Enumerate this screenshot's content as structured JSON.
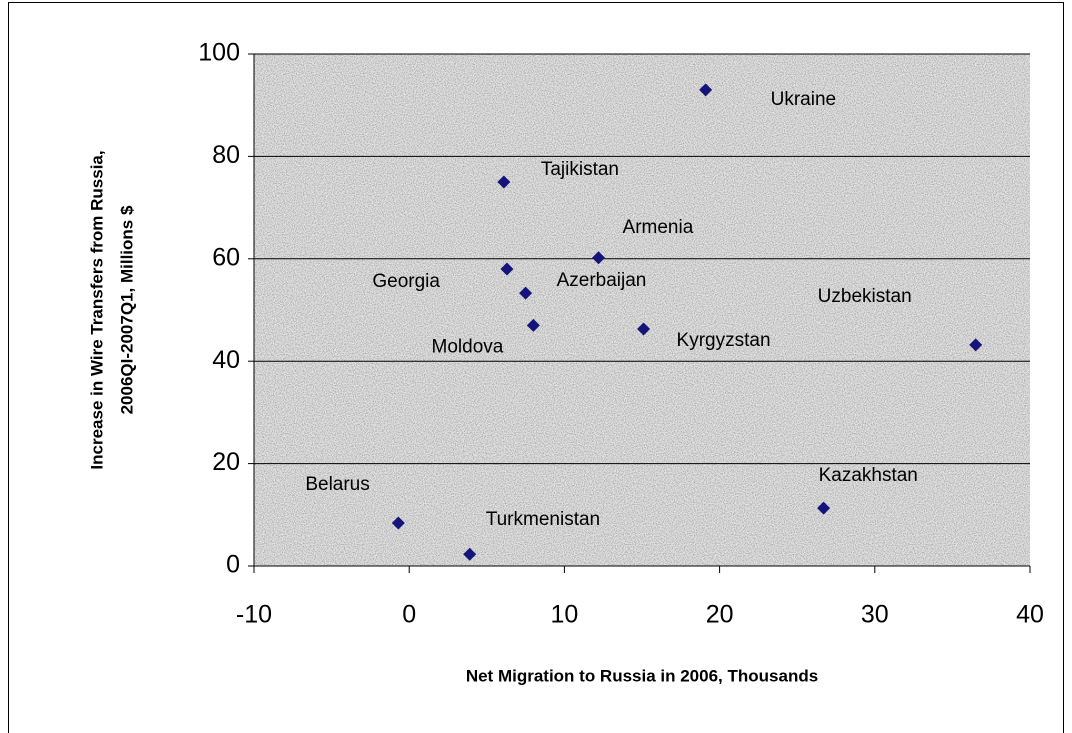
{
  "chart_data": {
    "type": "scatter",
    "x_label": "Net Migration to Russia in 2006, Thousands",
    "y_label": [
      "Increase in Wire Transfers from Russia,",
      "2006QI-2007Q1, Millions $"
    ],
    "labels": [
      "Ukraine",
      "Tajikistan",
      "Armenia",
      "Georgia",
      "Azerbaijan",
      "Moldova",
      "Kyrgyzstan",
      "Uzbekistan",
      "Kazakhstan",
      "Belarus",
      "Turkmenistan"
    ],
    "x": [
      19.1,
      6.1,
      12.2,
      6.3,
      7.5,
      8.0,
      15.1,
      36.5,
      26.7,
      -0.7,
      3.9
    ],
    "values": [
      93,
      75,
      60.2,
      58,
      53.3,
      47,
      46.3,
      43.2,
      11.3,
      8.4,
      2.3
    ],
    "color": "#14147a",
    "xlim": [
      -10,
      40
    ],
    "xticks": [
      -10,
      0,
      10,
      20,
      30,
      40
    ],
    "ylim": [
      0,
      100
    ],
    "yticks": [
      0,
      20,
      40,
      60,
      80,
      100
    ],
    "grid": true
  }
}
